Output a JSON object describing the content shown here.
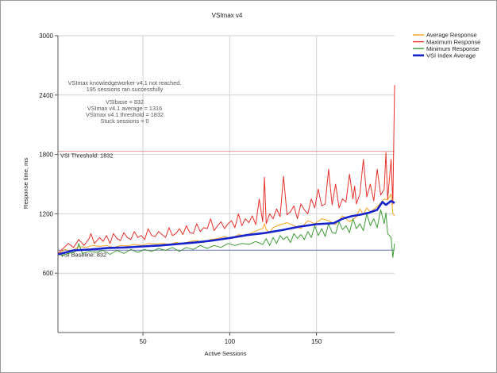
{
  "chart_data": {
    "type": "line",
    "title": "VSImax v4",
    "xlabel": "Active Sessions",
    "ylabel": "Response time, ms",
    "xlim": [
      1,
      195
    ],
    "ylim": [
      0,
      3000
    ],
    "x_ticks": [
      50,
      100,
      150
    ],
    "y_ticks": [
      600,
      1200,
      1800,
      2400,
      3000
    ],
    "grid": true,
    "legend_position": "top-right",
    "reference_lines": [
      {
        "name": "vsi-threshold",
        "label": "VSI Threshold: 1832",
        "value": 1832,
        "color": "#e8938f"
      },
      {
        "name": "vsi-baseline",
        "label": "VSI Baseline: 832",
        "value": 832,
        "color": "#6a74b8"
      }
    ],
    "notes": [
      "VSImax knowledgeworker v4.1 not reached.",
      "195 sessions ran successfully",
      "",
      "VSIbase = 832",
      "VSImax v4.1 average = 1316",
      "VSImax v4.1 threshold = 1832",
      "Stuck sessions = 0"
    ],
    "series": [
      {
        "name": "Average Response",
        "color": "#f7a21b",
        "width": 1,
        "x": [
          1,
          5,
          9,
          13,
          17,
          21,
          25,
          29,
          33,
          37,
          41,
          45,
          49,
          53,
          57,
          61,
          65,
          69,
          73,
          77,
          81,
          85,
          89,
          93,
          97,
          101,
          105,
          109,
          113,
          117,
          119,
          120,
          121,
          123,
          125,
          129,
          133,
          137,
          141,
          145,
          149,
          153,
          157,
          161,
          165,
          169,
          173,
          175,
          177,
          179,
          181,
          185,
          189,
          191,
          193,
          194,
          195
        ],
        "values": [
          790,
          840,
          820,
          870,
          860,
          880,
          870,
          880,
          860,
          880,
          875,
          890,
          880,
          900,
          895,
          900,
          890,
          910,
          900,
          920,
          930,
          910,
          940,
          950,
          970,
          950,
          990,
          980,
          1010,
          1040,
          1050,
          1100,
          1040,
          1010,
          1060,
          1090,
          1110,
          1080,
          1050,
          1130,
          1100,
          1150,
          1130,
          1090,
          1180,
          1120,
          1170,
          1250,
          1190,
          1260,
          1220,
          1270,
          1350,
          1340,
          1400,
          1200,
          1180
        ]
      },
      {
        "name": "Maximum Response",
        "color": "#e8302a",
        "width": 1,
        "x": [
          1,
          4,
          7,
          10,
          13,
          16,
          19,
          20,
          22,
          25,
          27,
          29,
          31,
          33,
          35,
          37,
          39,
          41,
          43,
          45,
          47,
          49,
          51,
          53,
          55,
          57,
          59,
          61,
          63,
          65,
          67,
          69,
          71,
          73,
          75,
          77,
          79,
          81,
          83,
          85,
          87,
          89,
          91,
          93,
          95,
          97,
          99,
          101,
          103,
          105,
          107,
          109,
          111,
          113,
          115,
          117,
          119,
          120,
          121,
          123,
          125,
          127,
          129,
          131,
          133,
          135,
          137,
          139,
          141,
          143,
          145,
          147,
          149,
          151,
          153,
          155,
          157,
          159,
          161,
          163,
          165,
          167,
          169,
          171,
          172,
          173,
          175,
          177,
          179,
          181,
          183,
          185,
          187,
          189,
          190,
          191,
          193,
          194,
          195
        ],
        "values": [
          800,
          850,
          900,
          860,
          940,
          880,
          950,
          1000,
          900,
          960,
          920,
          980,
          900,
          1000,
          950,
          930,
          1010,
          960,
          940,
          1020,
          960,
          980,
          940,
          1050,
          980,
          970,
          1020,
          990,
          960,
          1060,
          980,
          1000,
          1050,
          990,
          1080,
          1010,
          1000,
          1100,
          1020,
          1060,
          1050,
          1150,
          1030,
          1080,
          1120,
          1050,
          1100,
          1130,
          1060,
          1200,
          1080,
          1150,
          1110,
          1180,
          1090,
          1350,
          1120,
          1570,
          1100,
          1200,
          1150,
          1250,
          1170,
          1580,
          1190,
          1220,
          1280,
          1150,
          1300,
          1240,
          1200,
          1350,
          1260,
          1450,
          1280,
          1300,
          1650,
          1290,
          1500,
          1260,
          1350,
          1320,
          1600,
          1350,
          1480,
          1300,
          1400,
          1750,
          1370,
          1500,
          1330,
          1650,
          1390,
          1450,
          1820,
          1350,
          1750,
          1300,
          2500
        ]
      },
      {
        "name": "Minimum Response",
        "color": "#3f9c35",
        "width": 1,
        "x": [
          1,
          4,
          7,
          10,
          12,
          13,
          15,
          19,
          23,
          27,
          31,
          35,
          39,
          43,
          47,
          51,
          55,
          59,
          63,
          67,
          71,
          75,
          79,
          83,
          87,
          91,
          95,
          99,
          103,
          107,
          111,
          115,
          119,
          121,
          123,
          125,
          127,
          129,
          131,
          133,
          135,
          137,
          139,
          141,
          143,
          145,
          147,
          149,
          151,
          153,
          155,
          157,
          159,
          161,
          163,
          165,
          167,
          169,
          171,
          173,
          175,
          177,
          179,
          181,
          183,
          185,
          187,
          189,
          190,
          191,
          193,
          194,
          195
        ],
        "values": [
          790,
          780,
          800,
          810,
          830,
          900,
          800,
          820,
          810,
          830,
          790,
          830,
          800,
          840,
          810,
          840,
          820,
          850,
          830,
          860,
          820,
          860,
          840,
          880,
          850,
          880,
          860,
          900,
          880,
          900,
          890,
          920,
          890,
          950,
          880,
          960,
          900,
          980,
          940,
          970,
          910,
          1000,
          950,
          990,
          940,
          1020,
          960,
          1080,
          980,
          1050,
          970,
          1100,
          1010,
          1000,
          1120,
          1040,
          1080,
          1010,
          1150,
          1050,
          1100,
          1030,
          1200,
          1080,
          1150,
          1060,
          1240,
          1100,
          1210,
          1000,
          960,
          760,
          900
        ]
      },
      {
        "name": "VSI Index Average",
        "color": "#1523cc",
        "width": 2.6,
        "x": [
          1,
          10,
          20,
          30,
          40,
          50,
          60,
          70,
          80,
          90,
          100,
          110,
          120,
          130,
          140,
          150,
          160,
          165,
          170,
          175,
          180,
          185,
          188,
          190,
          193,
          195
        ],
        "values": [
          790,
          830,
          840,
          855,
          860,
          870,
          880,
          895,
          910,
          930,
          955,
          985,
          1005,
          1035,
          1070,
          1095,
          1105,
          1150,
          1175,
          1190,
          1210,
          1240,
          1320,
          1290,
          1330,
          1310
        ]
      }
    ]
  }
}
